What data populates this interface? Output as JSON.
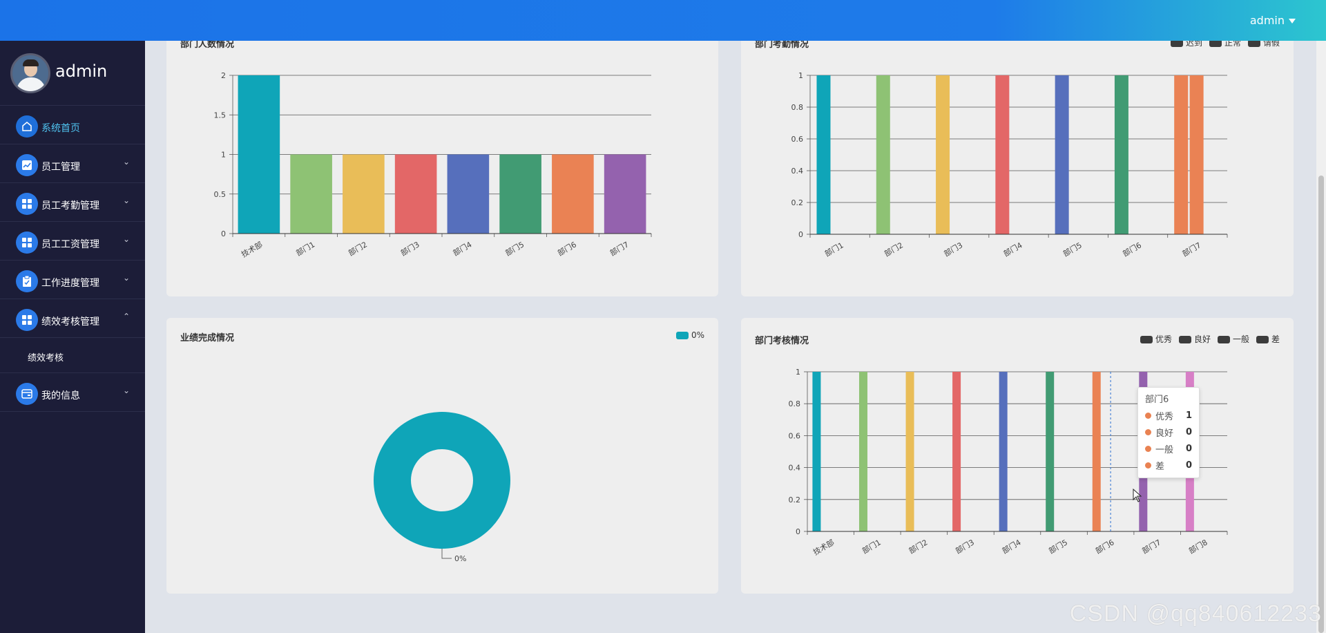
{
  "header": {
    "user_label": "admin"
  },
  "sidebar": {
    "username": "admin",
    "items": [
      {
        "label": "系统首页",
        "icon": "home-icon",
        "active": true,
        "chevron": ""
      },
      {
        "label": "员工管理",
        "icon": "chart-line-icon",
        "chevron": "⌄"
      },
      {
        "label": "员工考勤管理",
        "icon": "grid-icon",
        "chevron": "⌄"
      },
      {
        "label": "员工工资管理",
        "icon": "grid-icon",
        "chevron": "⌄"
      },
      {
        "label": "工作进度管理",
        "icon": "clipboard-icon",
        "chevron": "⌄"
      },
      {
        "label": "绩效考核管理",
        "icon": "grid-icon",
        "chevron": "⌃"
      },
      {
        "label": "我的信息",
        "icon": "card-icon",
        "chevron": "⌄"
      }
    ],
    "sub_items": [
      {
        "label": "绩效考核"
      }
    ]
  },
  "cards": {
    "dept_count": {
      "title": "部门人数情况"
    },
    "dept_attendance": {
      "title": "部门考勤情况",
      "legend": [
        "迟到",
        "正常",
        "请假"
      ]
    },
    "performance": {
      "title": "业绩完成情况",
      "legend": [
        "0%"
      ],
      "slice_label": "0%"
    },
    "dept_assessment": {
      "title": "部门考核情况",
      "legend": [
        "优秀",
        "良好",
        "一般",
        "差"
      ]
    }
  },
  "tooltip": {
    "title": "部门6",
    "rows": [
      {
        "label": "优秀",
        "value": "1"
      },
      {
        "label": "良好",
        "value": "0"
      },
      {
        "label": "一般",
        "value": "0"
      },
      {
        "label": "差",
        "value": "0"
      }
    ]
  },
  "watermark": "CSDN @qq840612233",
  "colors": {
    "palette": [
      "#0fa5b8",
      "#8ec274",
      "#e9bd58",
      "#e36767",
      "#566fbc",
      "#419b73",
      "#ea8254",
      "#9462ae",
      "#d77fc6"
    ],
    "legend_dark": "#3c3c3c",
    "accent": "#1b73e8"
  },
  "chart_data": [
    {
      "type": "bar",
      "title": "部门人数情况",
      "categories": [
        "技术部",
        "部门1",
        "部门2",
        "部门3",
        "部门4",
        "部门5",
        "部门6",
        "部门7"
      ],
      "values": [
        2,
        1,
        1,
        1,
        1,
        1,
        1,
        1
      ],
      "ylim": [
        0,
        2
      ],
      "yticks": [
        "0",
        "0.5",
        "1",
        "1.5",
        "2"
      ],
      "grid": true
    },
    {
      "type": "bar",
      "title": "部门考勤情况",
      "categories": [
        "部门1",
        "部门2",
        "部门3",
        "部门4",
        "部门5",
        "部门6",
        "部门7"
      ],
      "series": [
        {
          "name": "迟到",
          "values": [
            1,
            1,
            1,
            1,
            1,
            1,
            1
          ]
        },
        {
          "name": "正常",
          "values": [
            0,
            0,
            0,
            0,
            0,
            0,
            1
          ]
        },
        {
          "name": "请假",
          "values": [
            0,
            0,
            0,
            0,
            0,
            0,
            0
          ]
        }
      ],
      "ylim": [
        0,
        1
      ],
      "yticks": [
        "0",
        "0.2",
        "0.4",
        "0.6",
        "0.8",
        "1"
      ],
      "legend": "top-right",
      "grid": true
    },
    {
      "type": "pie",
      "title": "业绩完成情况",
      "categories": [
        "0%"
      ],
      "values": [
        1
      ],
      "legend": "top-right"
    },
    {
      "type": "bar",
      "title": "部门考核情况",
      "categories": [
        "技术部",
        "部门1",
        "部门2",
        "部门3",
        "部门4",
        "部门5",
        "部门6",
        "部门7",
        "部门8"
      ],
      "series": [
        {
          "name": "优秀",
          "values": [
            1,
            1,
            1,
            1,
            1,
            1,
            1,
            1,
            1
          ]
        },
        {
          "name": "良好",
          "values": [
            0,
            0,
            0,
            0,
            0,
            0,
            0,
            0,
            0
          ]
        },
        {
          "name": "一般",
          "values": [
            0,
            0,
            0,
            0,
            0,
            0,
            0,
            0,
            0
          ]
        },
        {
          "name": "差",
          "values": [
            0,
            0,
            0,
            0,
            0,
            0,
            0,
            0,
            0
          ]
        }
      ],
      "ylim": [
        0,
        1
      ],
      "yticks": [
        "0",
        "0.2",
        "0.4",
        "0.6",
        "0.8",
        "1"
      ],
      "legend": "top-right",
      "grid": true
    }
  ]
}
